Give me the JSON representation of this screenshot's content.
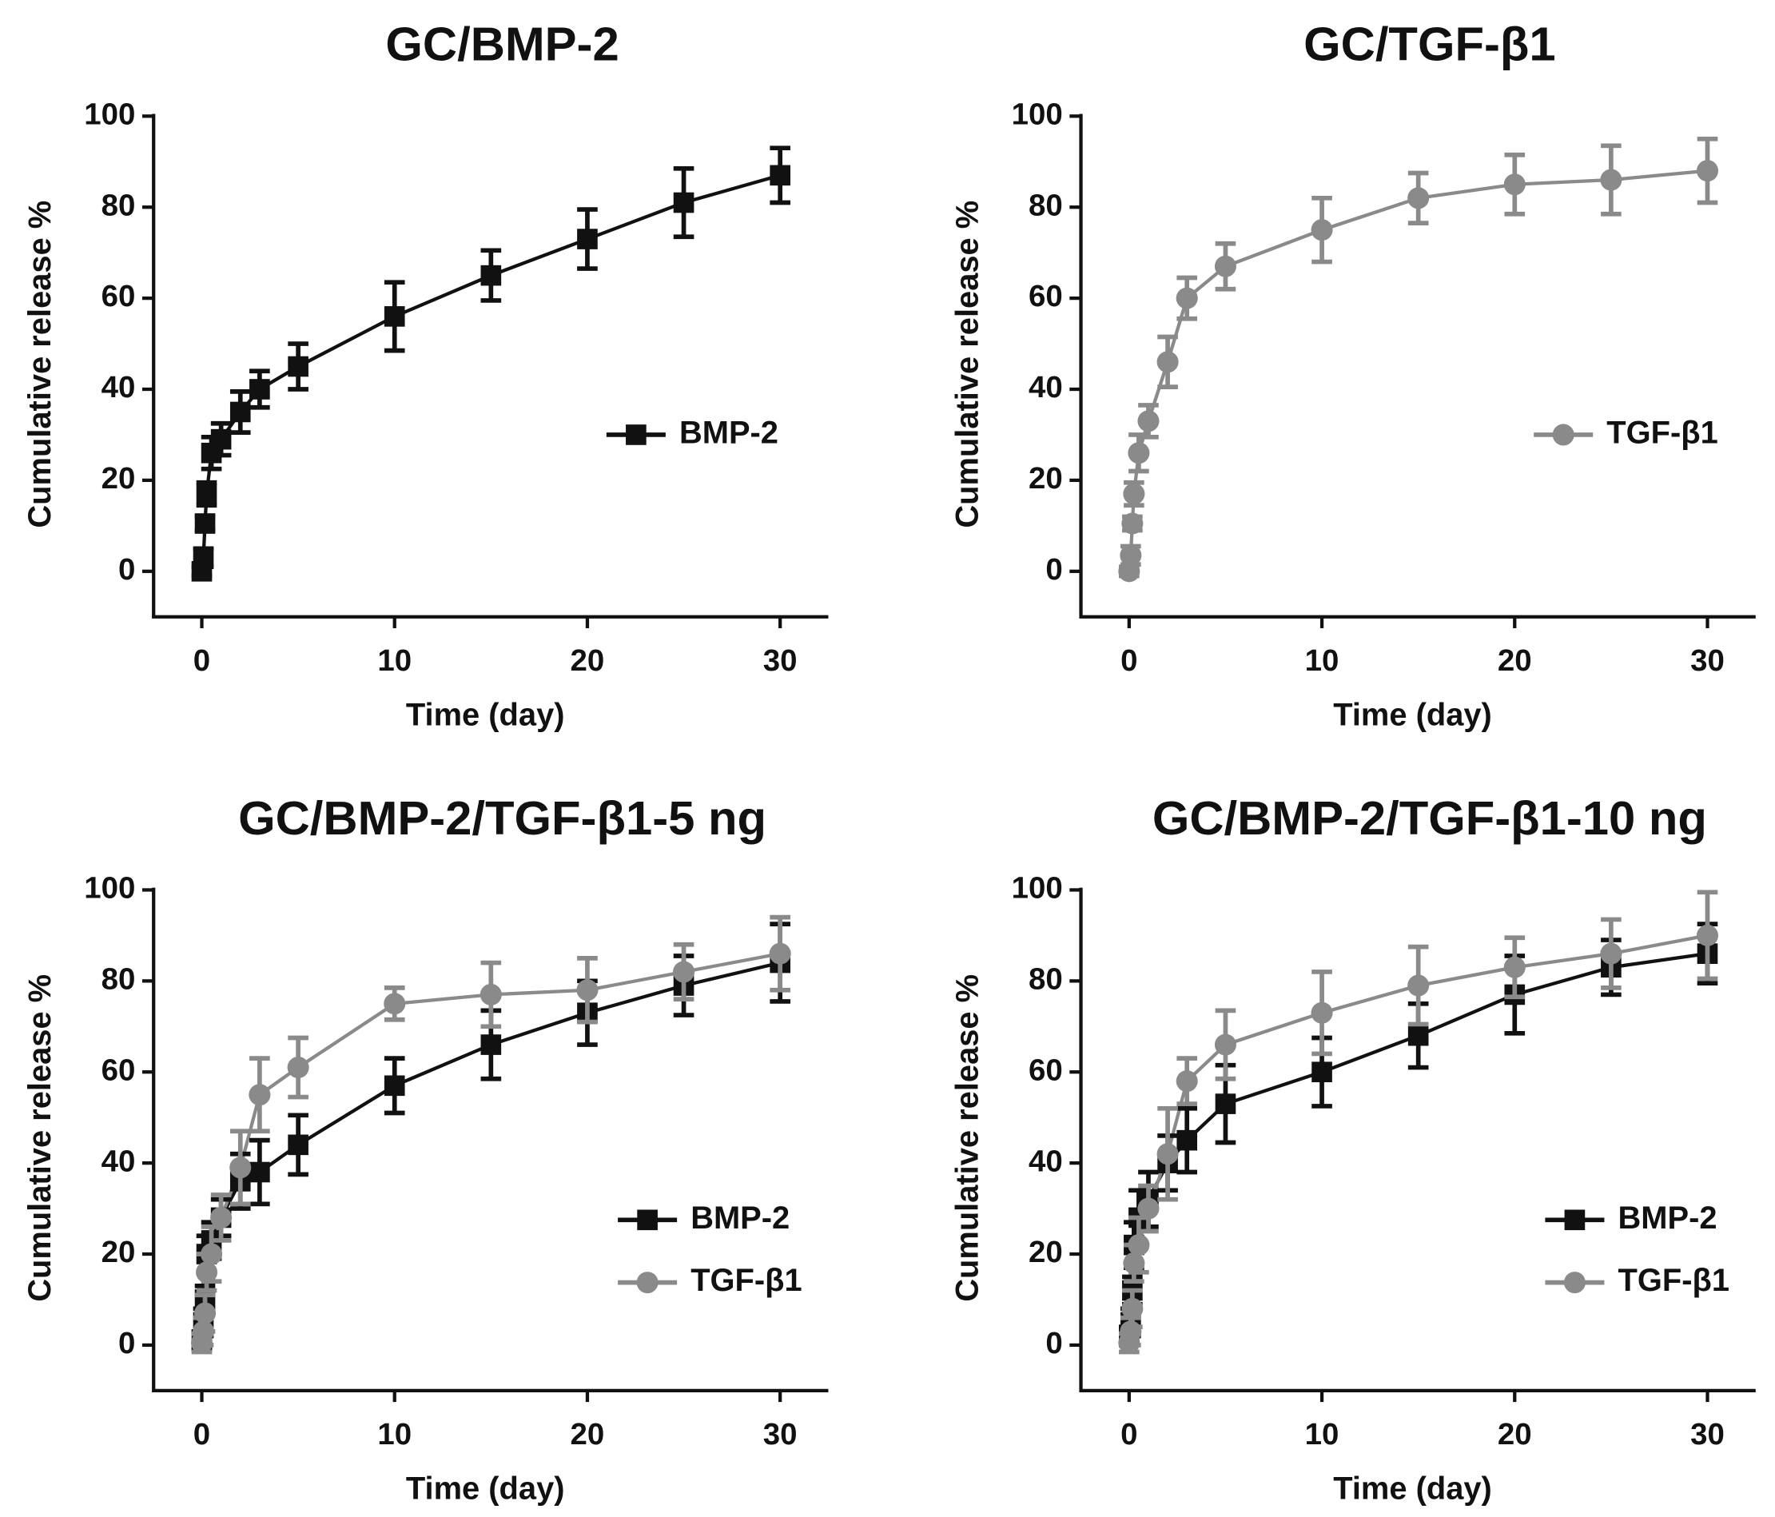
{
  "chart_data": [
    {
      "type": "line",
      "title": "GC/BMP-2",
      "x_label": "Time (day)",
      "y_label": "Cumulative release %",
      "x": [
        0,
        0.083,
        0.167,
        0.25,
        0.5,
        1,
        2,
        3,
        5,
        10,
        15,
        20,
        25,
        30
      ],
      "xlim": [
        -2.5,
        32.5
      ],
      "ylim": [
        -10,
        100
      ],
      "xticks": [
        0,
        10,
        20,
        30
      ],
      "yticks": [
        0,
        20,
        40,
        60,
        80,
        100
      ],
      "legend": "right",
      "series": [
        {
          "name": "BMP-2",
          "color": "#111111",
          "marker": "square",
          "values": [
            0,
            3,
            10.5,
            17,
            26,
            29,
            35,
            40,
            45,
            56,
            65,
            73,
            81,
            87
          ],
          "error": [
            1,
            2,
            1.5,
            2.5,
            3.5,
            3.5,
            4.5,
            4,
            5,
            7.5,
            5.5,
            6.5,
            7.5,
            6
          ]
        }
      ]
    },
    {
      "type": "line",
      "title": "GC/TGF-β1",
      "x_label": "Time (day)",
      "y_label": "Cumulative release %",
      "x": [
        0,
        0.083,
        0.167,
        0.25,
        0.5,
        1,
        2,
        3,
        5,
        10,
        15,
        20,
        25,
        30
      ],
      "xlim": [
        -2.5,
        32.5
      ],
      "ylim": [
        -10,
        100
      ],
      "xticks": [
        0,
        10,
        20,
        30
      ],
      "yticks": [
        0,
        20,
        40,
        60,
        80,
        100
      ],
      "legend": "right",
      "series": [
        {
          "name": "TGF-β1",
          "color": "#8a8a8a",
          "marker": "circle",
          "values": [
            0,
            3.5,
            10.5,
            17,
            26,
            33,
            46,
            60,
            67,
            75,
            82,
            85,
            86,
            88
          ],
          "error": [
            1,
            2,
            1.5,
            2.5,
            4,
            3.5,
            5.5,
            4.5,
            5,
            7,
            5.5,
            6.5,
            7.5,
            7
          ]
        }
      ]
    },
    {
      "type": "line",
      "title": "GC/BMP-2/TGF-β1-5 ng",
      "x_label": "Time (day)",
      "y_label": "Cumulative release %",
      "x": [
        0,
        0.083,
        0.167,
        0.25,
        0.5,
        1,
        2,
        3,
        5,
        10,
        15,
        20,
        25,
        30
      ],
      "xlim": [
        -2.5,
        32.5
      ],
      "ylim": [
        -10,
        100
      ],
      "xticks": [
        0,
        10,
        20,
        30
      ],
      "yticks": [
        0,
        20,
        40,
        60,
        80,
        100
      ],
      "legend": "lower right",
      "series": [
        {
          "name": "BMP-2",
          "color": "#111111",
          "marker": "square",
          "values": [
            1,
            5,
            10,
            20,
            23,
            28,
            36,
            38,
            44,
            57,
            66,
            73,
            79,
            84
          ],
          "error": [
            2,
            3,
            3,
            4,
            4,
            4,
            6,
            7,
            6.5,
            6,
            7.5,
            7,
            6.5,
            8.5
          ]
        },
        {
          "name": "TGF-β1",
          "color": "#8a8a8a",
          "marker": "circle",
          "values": [
            0.5,
            3,
            7,
            16,
            20,
            28,
            39,
            55,
            61,
            75,
            77,
            78,
            82,
            86
          ],
          "error": [
            2,
            3,
            4,
            4,
            6,
            5,
            8,
            8,
            6.5,
            3.5,
            7,
            7,
            6,
            8
          ]
        }
      ]
    },
    {
      "type": "line",
      "title": "GC/BMP-2/TGF-β1-10 ng",
      "x_label": "Time (day)",
      "y_label": "Cumulative release %",
      "x": [
        0,
        0.083,
        0.167,
        0.25,
        0.5,
        1,
        2,
        3,
        5,
        10,
        15,
        20,
        25,
        30
      ],
      "xlim": [
        -2.5,
        32.5
      ],
      "ylim": [
        -10,
        100
      ],
      "xticks": [
        0,
        10,
        20,
        30
      ],
      "yticks": [
        0,
        20,
        40,
        60,
        80,
        100
      ],
      "legend": "lower right",
      "series": [
        {
          "name": "BMP-2",
          "color": "#111111",
          "marker": "square",
          "values": [
            2,
            5,
            12,
            22,
            28,
            32,
            40,
            45,
            53,
            60,
            68,
            77,
            83,
            86
          ],
          "error": [
            2,
            3,
            3,
            5,
            6,
            6,
            6,
            7,
            8.5,
            7.5,
            7,
            8.5,
            6,
            6.5
          ]
        },
        {
          "name": "TGF-β1",
          "color": "#8a8a8a",
          "marker": "circle",
          "values": [
            0.5,
            3,
            8,
            18,
            22,
            30,
            42,
            58,
            66,
            73,
            79,
            83,
            86,
            90
          ],
          "error": [
            2,
            3,
            4,
            4,
            6,
            5,
            10,
            5,
            7.5,
            9,
            8.5,
            6.5,
            7.5,
            9.5
          ]
        }
      ]
    }
  ]
}
